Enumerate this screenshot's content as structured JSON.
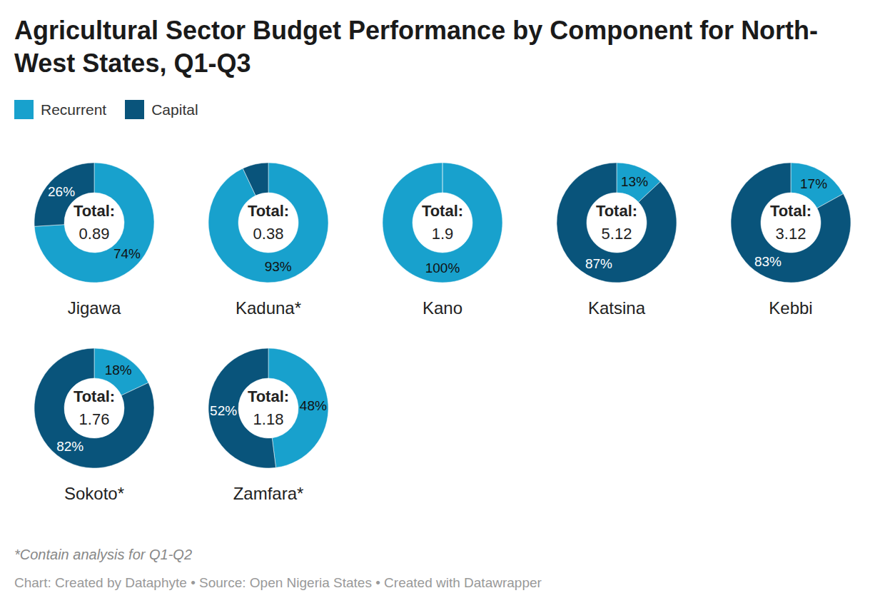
{
  "chart_data": {
    "type": "pie",
    "title": "Agricultural Sector Budget Performance by Component for North-West States, Q1-Q3",
    "categories": [
      "Jigawa",
      "Kaduna*",
      "Kano",
      "Katsina",
      "Kebbi",
      "Sokoto*",
      "Zamfara*"
    ],
    "series": [
      {
        "name": "Recurrent",
        "color": "#18a1cd",
        "values": [
          74,
          93,
          100,
          13,
          17,
          18,
          48
        ],
        "value_labels": [
          "74%",
          "93%",
          "100%",
          "13%",
          "17%",
          "18%",
          "48%"
        ]
      },
      {
        "name": "Capital",
        "color": "#09547b",
        "values": [
          26,
          7,
          0,
          87,
          83,
          82,
          52
        ],
        "value_labels": [
          "26%",
          null,
          null,
          "87%",
          "83%",
          "82%",
          "52%"
        ]
      }
    ],
    "total_label": "Total:",
    "totals": [
      0.89,
      0.38,
      1.9,
      5.12,
      3.12,
      1.76,
      1.18
    ],
    "data_labels": true,
    "legend": "top left",
    "note": "*Contain analysis for Q1-Q2",
    "source": "Chart: Created by Dataphyte • Source: Open Nigeria States • Created with Datawrapper"
  }
}
